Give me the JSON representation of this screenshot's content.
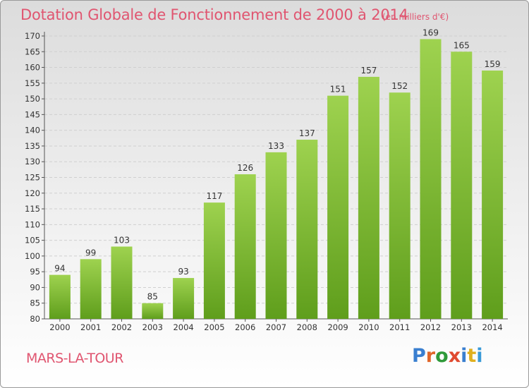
{
  "header": {
    "title": "Dotation Globale de Fonctionnement de 2000 à 2014",
    "unit": "(en milliers d'€)"
  },
  "footer": {
    "city": "MARS-LA-TOUR",
    "logo": {
      "text": "Proxiti",
      "colors": [
        "#3a7fd0",
        "#e0662a",
        "#2f9a3a",
        "#e04a30",
        "#3a7fd0",
        "#e0b020",
        "#3a9ad8"
      ]
    }
  },
  "chart_data": {
    "type": "bar",
    "title": "Dotation Globale de Fonctionnement de 2000 à 2014",
    "subtitle": "(en milliers d'€)",
    "categories": [
      "2000",
      "2001",
      "2002",
      "2003",
      "2004",
      "2005",
      "2006",
      "2007",
      "2008",
      "2009",
      "2010",
      "2011",
      "2012",
      "2013",
      "2014"
    ],
    "values": [
      94,
      99,
      103,
      85,
      93,
      117,
      126,
      133,
      137,
      151,
      157,
      152,
      169,
      165,
      159
    ],
    "ylim": [
      80,
      170
    ],
    "yticks": [
      80,
      85,
      90,
      95,
      100,
      105,
      110,
      115,
      120,
      125,
      130,
      135,
      140,
      145,
      150,
      155,
      160,
      165,
      170
    ],
    "grid": "horizontal",
    "colors": {
      "bar_top": "#9ed24f",
      "bar_bottom": "#5f9e1c",
      "grid": "#cfcfcf",
      "text": "#333333"
    }
  }
}
